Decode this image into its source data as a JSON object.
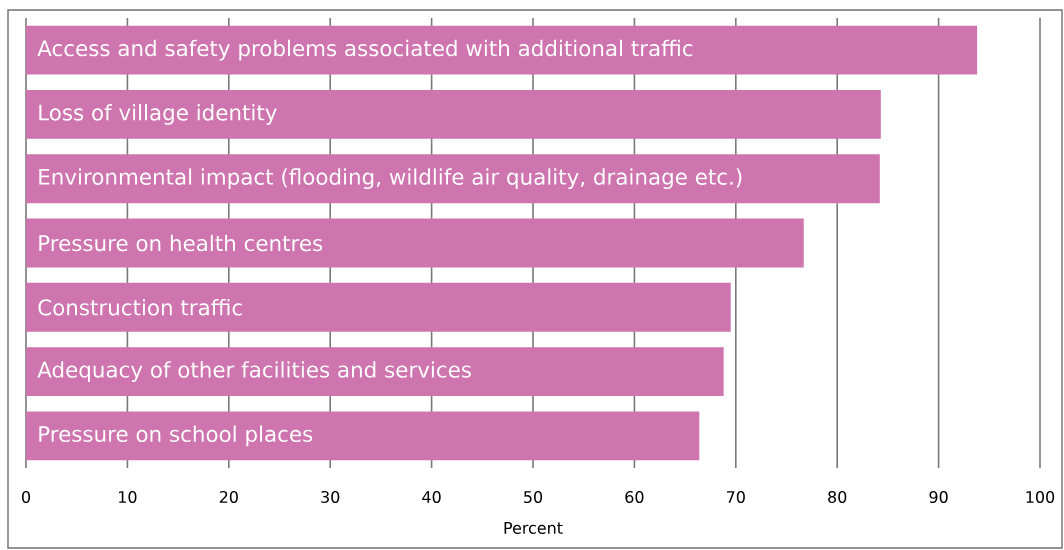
{
  "chart_data": {
    "type": "bar",
    "orientation": "horizontal",
    "xlabel": "Percent",
    "categories": [
      "Access and safety problems associated with additional traffic",
      "Loss of village identity",
      "Environmental impact (flooding, wildlife air quality, drainage etc.)",
      "Pressure on health centres",
      "Construction traffic",
      "Adequacy of other facilities and services",
      "Pressure on school places"
    ],
    "values": [
      93.8,
      84.3,
      84.2,
      76.7,
      69.5,
      68.8,
      66.4
    ],
    "color": "#ce74ae",
    "xlim": [
      0,
      100
    ],
    "xticks": [
      0,
      10,
      20,
      30,
      40,
      50,
      60,
      70,
      80,
      90,
      100
    ],
    "grid": "x"
  }
}
